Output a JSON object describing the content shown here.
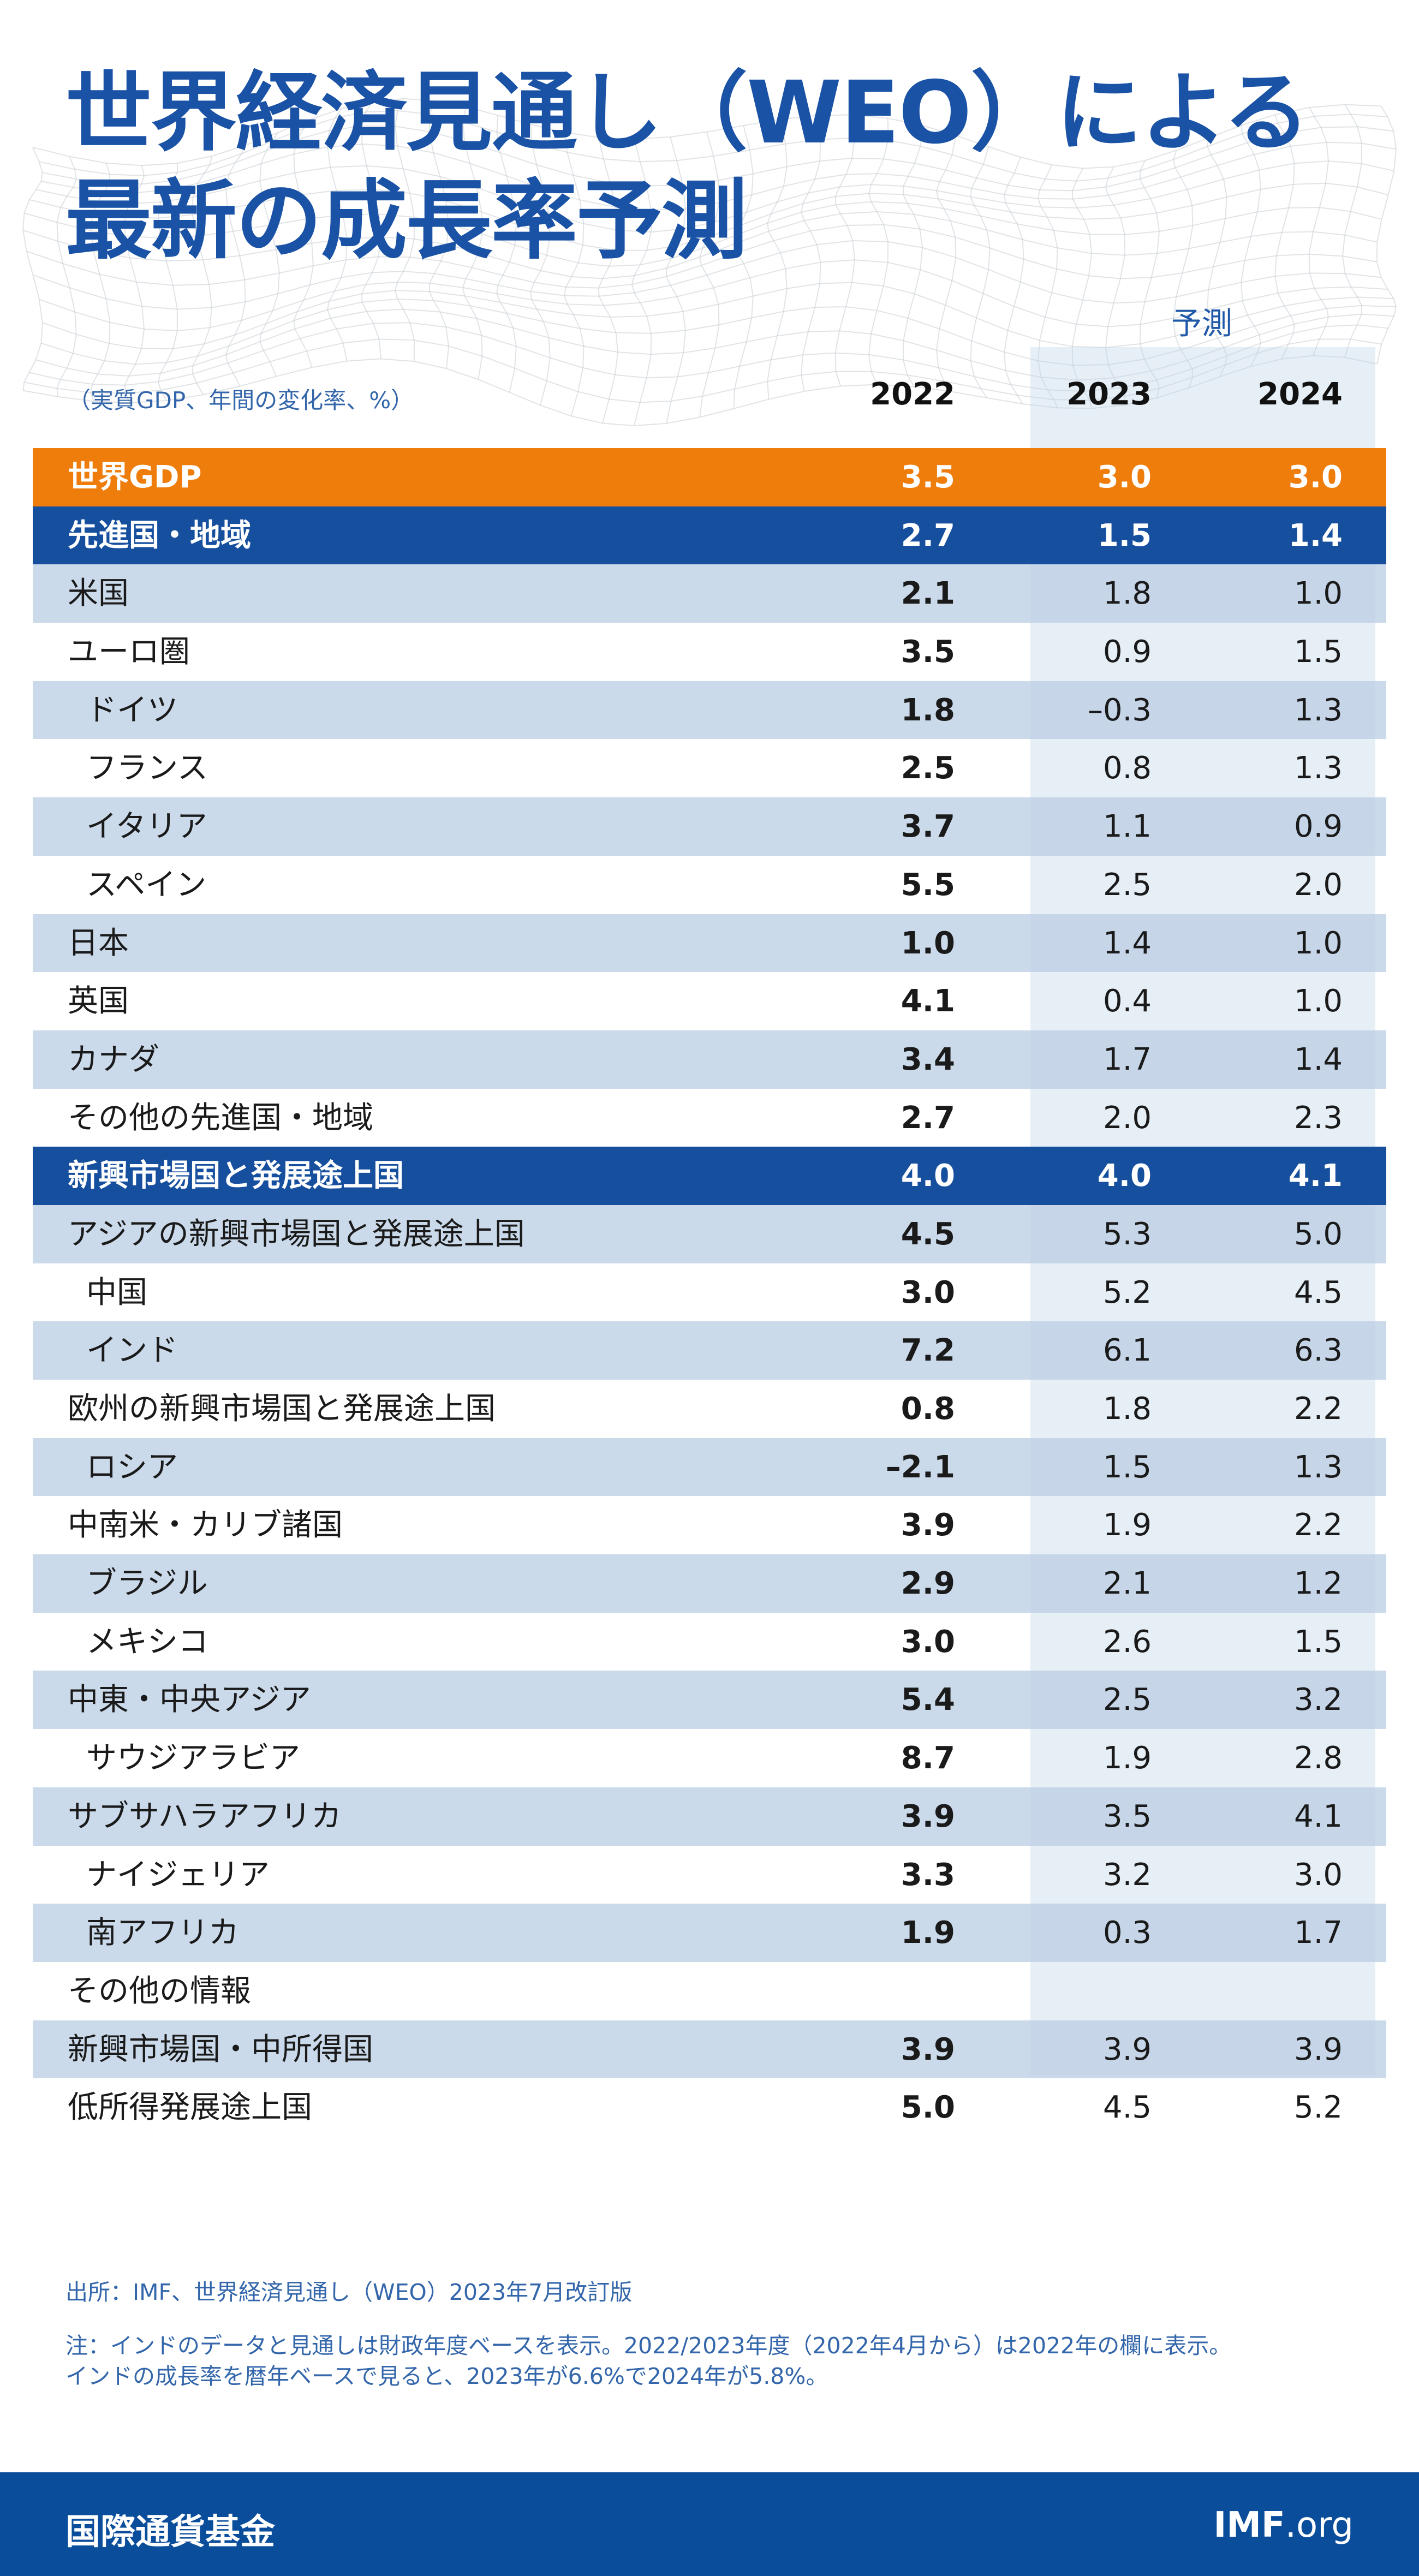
{
  "title_lines": [
    "世界経済見通し（WEO）による",
    "最新の成長率予測"
  ],
  "forecast_label": "予測",
  "unit_label": "（実質GDP、年間の変化率、%）",
  "colors": {
    "title": "#1a52a6",
    "world_row": "#ef7d0b",
    "region_row": "#164f9e",
    "row_shade": "#bdcfe4",
    "forecast_band": "#c4d6ea",
    "footer": "#0a4d9b"
  },
  "chart_data": {
    "type": "table",
    "columns": [
      "2022",
      "2023",
      "2024"
    ],
    "forecast_columns": [
      "2023",
      "2024"
    ],
    "rows": [
      {
        "label": "世界GDP",
        "values": [
          "3.5",
          "3.0",
          "3.0"
        ],
        "style": "world",
        "indent": false
      },
      {
        "label": "先進国・地域",
        "values": [
          "2.7",
          "1.5",
          "1.4"
        ],
        "style": "region",
        "indent": false
      },
      {
        "label": "米国",
        "values": [
          "2.1",
          "1.8",
          "1.0"
        ],
        "style": "shade",
        "indent": false
      },
      {
        "label": "ユーロ圏",
        "values": [
          "3.5",
          "0.9",
          "1.5"
        ],
        "style": "plain",
        "indent": false
      },
      {
        "label": "ドイツ",
        "values": [
          "1.8",
          "–0.3",
          "1.3"
        ],
        "style": "shade",
        "indent": true
      },
      {
        "label": "フランス",
        "values": [
          "2.5",
          "0.8",
          "1.3"
        ],
        "style": "plain",
        "indent": true
      },
      {
        "label": "イタリア",
        "values": [
          "3.7",
          "1.1",
          "0.9"
        ],
        "style": "shade",
        "indent": true
      },
      {
        "label": "スペイン",
        "values": [
          "5.5",
          "2.5",
          "2.0"
        ],
        "style": "plain",
        "indent": true
      },
      {
        "label": "日本",
        "values": [
          "1.0",
          "1.4",
          "1.0"
        ],
        "style": "shade",
        "indent": false
      },
      {
        "label": "英国",
        "values": [
          "4.1",
          "0.4",
          "1.0"
        ],
        "style": "plain",
        "indent": false
      },
      {
        "label": "カナダ",
        "values": [
          "3.4",
          "1.7",
          "1.4"
        ],
        "style": "shade",
        "indent": false
      },
      {
        "label": "その他の先進国・地域",
        "values": [
          "2.7",
          "2.0",
          "2.3"
        ],
        "style": "plain",
        "indent": false
      },
      {
        "label": "新興市場国と発展途上国",
        "values": [
          "4.0",
          "4.0",
          "4.1"
        ],
        "style": "region",
        "indent": false
      },
      {
        "label": "アジアの新興市場国と発展途上国",
        "values": [
          "4.5",
          "5.3",
          "5.0"
        ],
        "style": "shade",
        "indent": false
      },
      {
        "label": "中国",
        "values": [
          "3.0",
          "5.2",
          "4.5"
        ],
        "style": "plain",
        "indent": true
      },
      {
        "label": "インド",
        "values": [
          "7.2",
          "6.1",
          "6.3"
        ],
        "style": "shade",
        "indent": true
      },
      {
        "label": "欧州の新興市場国と発展途上国",
        "values": [
          "0.8",
          "1.8",
          "2.2"
        ],
        "style": "plain",
        "indent": false
      },
      {
        "label": "ロシア",
        "values": [
          "–2.1",
          "1.5",
          "1.3"
        ],
        "style": "shade",
        "indent": true
      },
      {
        "label": "中南米・カリブ諸国",
        "values": [
          "3.9",
          "1.9",
          "2.2"
        ],
        "style": "plain",
        "indent": false
      },
      {
        "label": "ブラジル",
        "values": [
          "2.9",
          "2.1",
          "1.2"
        ],
        "style": "shade",
        "indent": true
      },
      {
        "label": "メキシコ",
        "values": [
          "3.0",
          "2.6",
          "1.5"
        ],
        "style": "plain",
        "indent": true
      },
      {
        "label": "中東・中央アジア",
        "values": [
          "5.4",
          "2.5",
          "3.2"
        ],
        "style": "shade",
        "indent": false
      },
      {
        "label": "サウジアラビア",
        "values": [
          "8.7",
          "1.9",
          "2.8"
        ],
        "style": "plain",
        "indent": true
      },
      {
        "label": "サブサハラアフリカ",
        "values": [
          "3.9",
          "3.5",
          "4.1"
        ],
        "style": "shade",
        "indent": false
      },
      {
        "label": "ナイジェリア",
        "values": [
          "3.3",
          "3.2",
          "3.0"
        ],
        "style": "plain",
        "indent": true
      },
      {
        "label": "南アフリカ",
        "values": [
          "1.9",
          "0.3",
          "1.7"
        ],
        "style": "shade",
        "indent": true
      },
      {
        "label": "その他の情報",
        "values": [
          "",
          "",
          ""
        ],
        "style": "plain",
        "indent": false
      },
      {
        "label": "新興市場国・中所得国",
        "values": [
          "3.9",
          "3.9",
          "3.9"
        ],
        "style": "shade",
        "indent": false
      },
      {
        "label": "低所得発展途上国",
        "values": [
          "5.0",
          "4.5",
          "5.2"
        ],
        "style": "plain",
        "indent": false
      }
    ]
  },
  "source": "出所：IMF、世界経済見通し（WEO）2023年7月改訂版",
  "note_lines": [
    "注：インドのデータと見通しは財政年度ベースを表示。2022/2023年度（2022年4月から）は2022年の欄に表示。",
    "インドの成長率を暦年ベースで見ると、2023年が6.6%で2024年が5.8%。"
  ],
  "footer": {
    "org_name": "国際通貨基金",
    "site_main": "IMF",
    "site_suffix": ".org"
  }
}
